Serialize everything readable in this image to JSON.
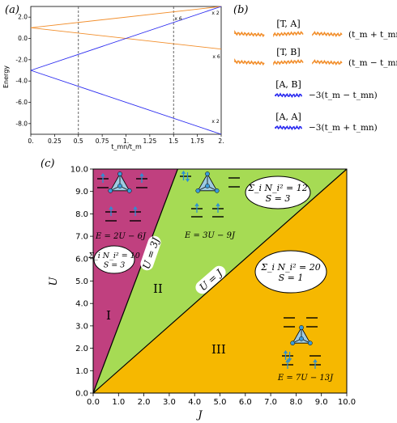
{
  "panel_a": {
    "label": "(a)",
    "ylabel": "Energy",
    "xlabel": "t_mn/t_m",
    "xticks": [
      "0.",
      "0.25",
      "0.5",
      "0.75",
      "1.",
      "1.25",
      "1.5",
      "1.75",
      "2."
    ],
    "yticks": [
      "2.0",
      "0.0",
      "-2.0",
      "-4.0",
      "-6.0",
      "-8.0"
    ],
    "multiplicity_labels": [
      "x 6",
      "x 2",
      "x 6",
      "x 2"
    ]
  },
  "panel_b": {
    "label": "(b)",
    "rows": [
      {
        "term": "[T, A]",
        "energy": "(t_m + t_mn)",
        "color": "#f28e2b"
      },
      {
        "term": "[T, B]",
        "energy": "(t_m − t_mn)",
        "color": "#f28e2b"
      },
      {
        "term": "[A, B]",
        "energy": "−3(t_m − t_mn)",
        "color": "#2a2af0"
      },
      {
        "term": "[A, A]",
        "energy": "−3(t_m + t_mn)",
        "color": "#2a2af0"
      }
    ]
  },
  "panel_c": {
    "label": "(c)",
    "xlabel": "J",
    "ylabel": "U",
    "ticks": [
      "0.0",
      "1.0",
      "2.0",
      "3.0",
      "4.0",
      "5.0",
      "6.0",
      "7.0",
      "8.0",
      "9.0",
      "10.0"
    ],
    "region_labels": [
      "I",
      "II",
      "III"
    ],
    "line_labels": [
      "U = 3J",
      "U = J"
    ],
    "boxes": [
      {
        "sum": "Σ_i N_i² = 10",
        "spin": "S = 3"
      },
      {
        "sum": "Σ_i N_i² = 12",
        "spin": "S = 3"
      },
      {
        "sum": "Σ_i N_i² = 20",
        "spin": "S = 1"
      }
    ],
    "energies": [
      "E = 2U − 6J",
      "E = 3U − 9J",
      "E = 7U − 13J"
    ],
    "colors": {
      "region1": "#c0407f",
      "region2": "#a6db54",
      "region3": "#f6b800"
    }
  },
  "chart_data": [
    {
      "type": "line",
      "title": "",
      "xlabel": "t_mn/t_m",
      "ylabel": "Energy",
      "xlim": [
        0,
        2
      ],
      "ylim": [
        -9,
        3
      ],
      "grid": false,
      "vlines": [
        0.5,
        1.5
      ],
      "series": [
        {
          "color": "#f28e2b",
          "x": [
            0,
            2
          ],
          "values": [
            1,
            3
          ]
        },
        {
          "color": "#f28e2b",
          "x": [
            0,
            2
          ],
          "values": [
            1,
            -1
          ]
        },
        {
          "color": "#2a2af0",
          "x": [
            0,
            2
          ],
          "values": [
            -3,
            3
          ]
        },
        {
          "color": "#2a2af0",
          "x": [
            0,
            2
          ],
          "values": [
            -3,
            -9
          ]
        }
      ]
    },
    {
      "type": "area",
      "title": "",
      "xlabel": "J",
      "ylabel": "U",
      "xlim": [
        0,
        10
      ],
      "ylim": [
        0,
        10
      ],
      "grid": false,
      "boundaries": [
        {
          "label": "U = 3J",
          "x": [
            0,
            3.333
          ],
          "values": [
            0,
            10
          ]
        },
        {
          "label": "U = J",
          "x": [
            0,
            10
          ],
          "values": [
            0,
            10
          ]
        }
      ],
      "regions": [
        "I",
        "II",
        "III"
      ]
    }
  ]
}
